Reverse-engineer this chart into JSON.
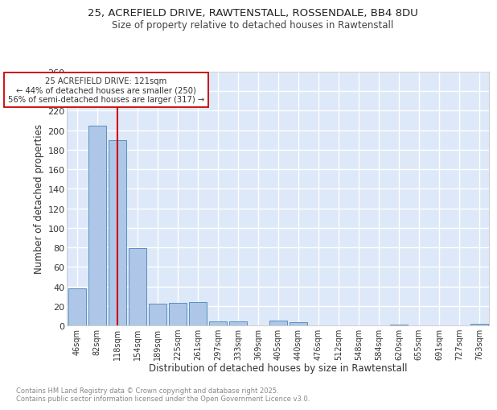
{
  "title_line1": "25, ACREFIELD DRIVE, RAWTENSTALL, ROSSENDALE, BB4 8DU",
  "title_line2": "Size of property relative to detached houses in Rawtenstall",
  "xlabel": "Distribution of detached houses by size in Rawtenstall",
  "ylabel": "Number of detached properties",
  "bar_labels": [
    "46sqm",
    "82sqm",
    "118sqm",
    "154sqm",
    "189sqm",
    "225sqm",
    "261sqm",
    "297sqm",
    "333sqm",
    "369sqm",
    "405sqm",
    "440sqm",
    "476sqm",
    "512sqm",
    "548sqm",
    "584sqm",
    "620sqm",
    "655sqm",
    "691sqm",
    "727sqm",
    "763sqm"
  ],
  "bar_values": [
    38,
    205,
    190,
    79,
    22,
    23,
    24,
    4,
    4,
    0,
    5,
    3,
    0,
    0,
    0,
    0,
    1,
    0,
    0,
    0,
    2
  ],
  "bar_color": "#aec6e8",
  "bar_edge_color": "#5a8fc0",
  "bg_color": "#dde8f8",
  "grid_color": "#ffffff",
  "vline_x": 2,
  "vline_color": "#cc0000",
  "annotation_text": "25 ACREFIELD DRIVE: 121sqm\n← 44% of detached houses are smaller (250)\n56% of semi-detached houses are larger (317) →",
  "annotation_box_color": "#ffffff",
  "annotation_box_edge": "#cc0000",
  "footer_text": "Contains HM Land Registry data © Crown copyright and database right 2025.\nContains public sector information licensed under the Open Government Licence v3.0.",
  "ylim": [
    0,
    260
  ],
  "yticks": [
    0,
    20,
    40,
    60,
    80,
    100,
    120,
    140,
    160,
    180,
    200,
    220,
    240,
    260
  ]
}
